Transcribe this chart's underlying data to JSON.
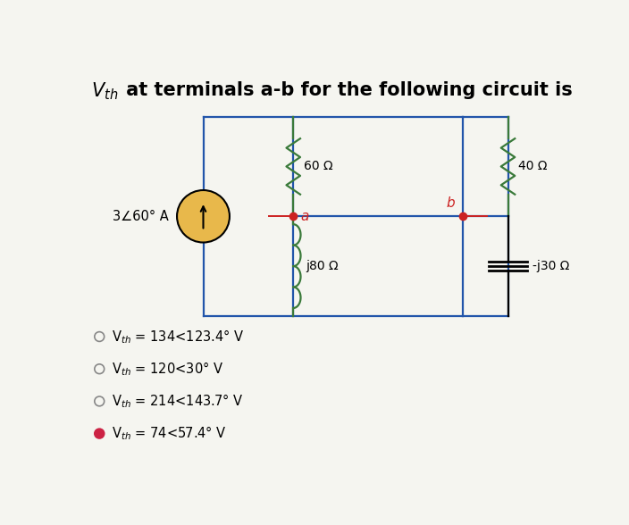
{
  "title_prefix": "$V_{th}$",
  "title_suffix": " at terminals a-b for the following circuit is",
  "title_fontsize": 15,
  "bg_color": "#f5f5f0",
  "options": [
    {
      "text": "V$_{th}$ = 134<123.4° V",
      "selected": false
    },
    {
      "text": "V$_{th}$ = 120<30° V",
      "selected": false
    },
    {
      "text": "V$_{th}$ = 214<143.7° V",
      "selected": false
    },
    {
      "text": "V$_{th}$ = 74<57.4° V",
      "selected": true
    }
  ],
  "resistor_color": "#3a7a3a",
  "wire_color": "#2255aa",
  "black": "#000000",
  "terminal_color": "#cc2222",
  "cs_fill": "#e8b84b",
  "lw_wire": 1.6,
  "lw_comp": 1.6
}
